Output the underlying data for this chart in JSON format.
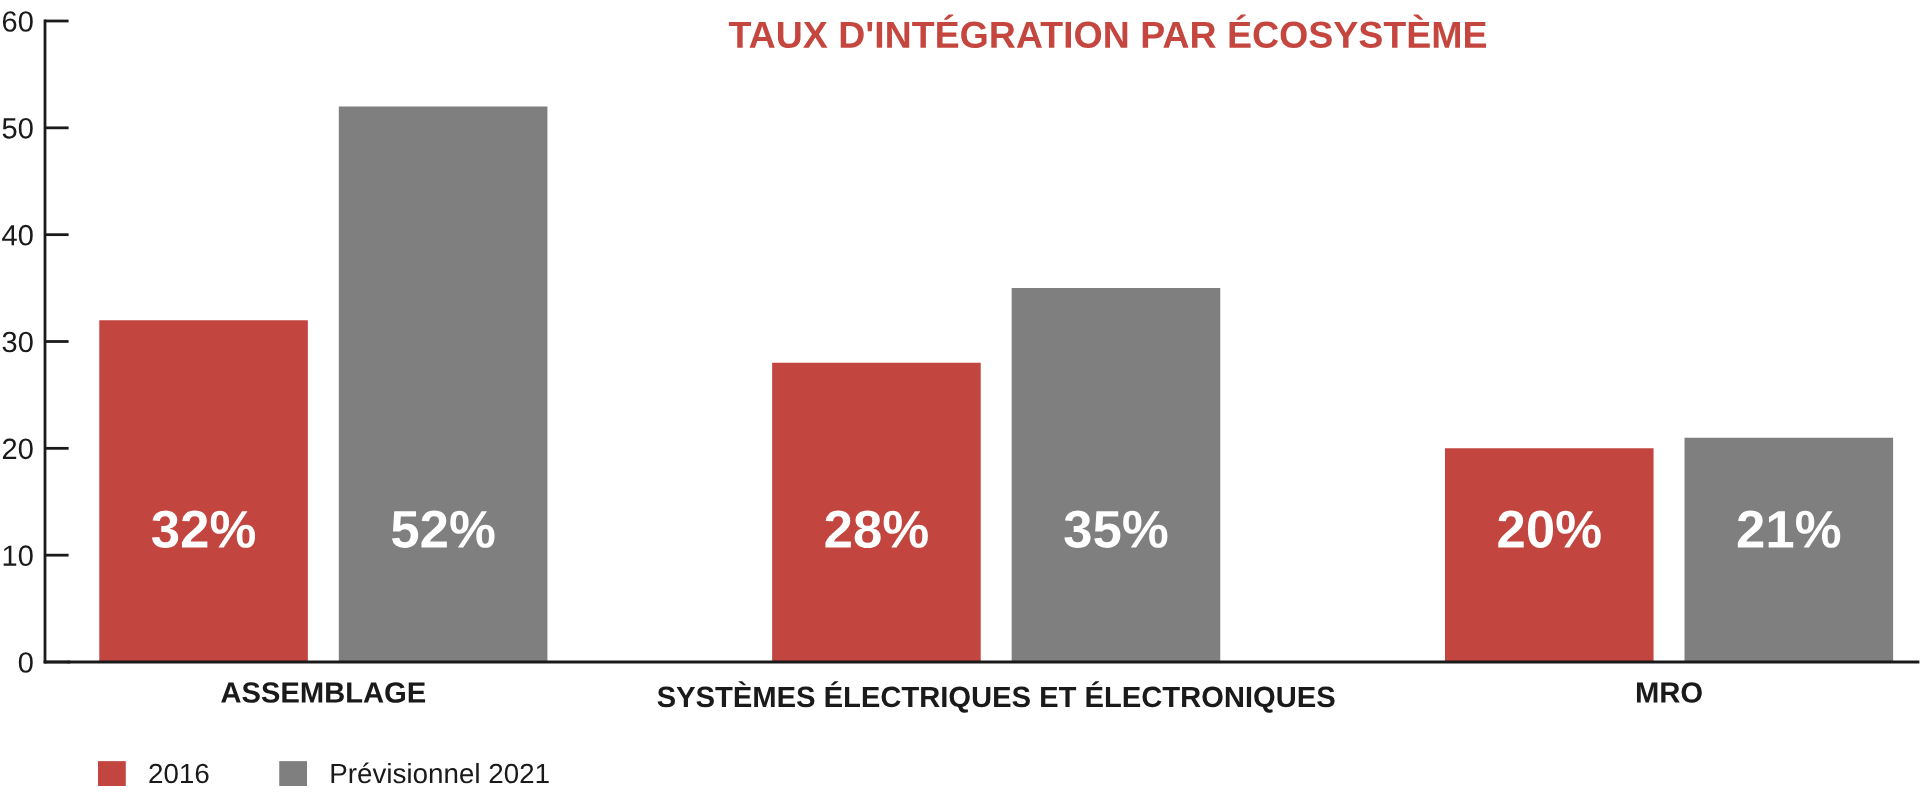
{
  "chart_data": {
    "type": "bar",
    "title": "TAUX D'INTÉGRATION PAR ÉCOSYSTÈME",
    "categories": [
      "ASSEMBLAGE",
      "SYSTÈMES ÉLECTRIQUES ET ÉLECTRONIQUES",
      "MRO"
    ],
    "series": [
      {
        "name": "2016",
        "color": "#c3453f",
        "values": [
          32,
          28,
          20
        ],
        "value_labels": [
          "32%",
          "28%",
          "20%"
        ]
      },
      {
        "name": "Prévisionnel 2021",
        "color": "#7f7f7f",
        "values": [
          52,
          35,
          21
        ],
        "value_labels": [
          "52%",
          "35%",
          "21%"
        ]
      }
    ],
    "ylim": [
      0,
      60
    ],
    "yticks": [
      0,
      10,
      20,
      30,
      40,
      50,
      60
    ],
    "grid": false,
    "legend": "bottom left"
  }
}
